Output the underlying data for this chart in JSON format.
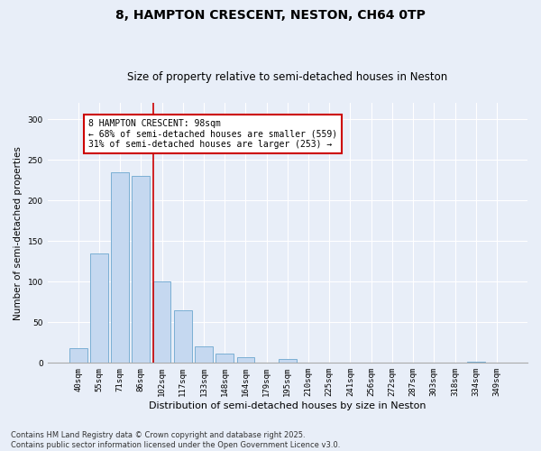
{
  "title": "8, HAMPTON CRESCENT, NESTON, CH64 0TP",
  "subtitle": "Size of property relative to semi-detached houses in Neston",
  "xlabel": "Distribution of semi-detached houses by size in Neston",
  "ylabel": "Number of semi-detached properties",
  "categories": [
    "40sqm",
    "55sqm",
    "71sqm",
    "86sqm",
    "102sqm",
    "117sqm",
    "133sqm",
    "148sqm",
    "164sqm",
    "179sqm",
    "195sqm",
    "210sqm",
    "225sqm",
    "241sqm",
    "256sqm",
    "272sqm",
    "287sqm",
    "303sqm",
    "318sqm",
    "334sqm",
    "349sqm"
  ],
  "values": [
    18,
    135,
    235,
    230,
    100,
    65,
    20,
    11,
    7,
    0,
    5,
    0,
    0,
    0,
    0,
    0,
    0,
    0,
    0,
    1,
    0
  ],
  "bar_color": "#c5d8f0",
  "bar_edge_color": "#7bafd4",
  "vline_x_index": 4,
  "vline_color": "#cc0000",
  "annotation_text": "8 HAMPTON CRESCENT: 98sqm\n← 68% of semi-detached houses are smaller (559)\n31% of semi-detached houses are larger (253) →",
  "annotation_box_color": "#ffffff",
  "annotation_box_edge": "#cc0000",
  "ylim": [
    0,
    320
  ],
  "yticks": [
    0,
    50,
    100,
    150,
    200,
    250,
    300
  ],
  "background_color": "#e8eef8",
  "plot_bg_color": "#e8eef8",
  "footer": "Contains HM Land Registry data © Crown copyright and database right 2025.\nContains public sector information licensed under the Open Government Licence v3.0.",
  "title_fontsize": 10,
  "subtitle_fontsize": 8.5,
  "ylabel_fontsize": 7.5,
  "xlabel_fontsize": 8,
  "tick_fontsize": 6.5,
  "annotation_fontsize": 7,
  "footer_fontsize": 6
}
